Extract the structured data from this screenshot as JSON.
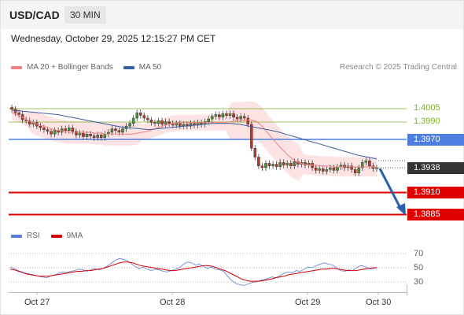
{
  "header": {
    "symbol": "USD/CAD",
    "timeframe": "30 MIN"
  },
  "datetime": "Wednesday, October 29, 2025 12:15:27 PM CET",
  "legend": {
    "ma20": "MA 20 + Bollinger Bands",
    "ma50": "MA 50",
    "rsi": "RSI",
    "rsi_ma": "9MA"
  },
  "research": "Research © 2025 Trading Central",
  "colors": {
    "up": "#4a8a3c",
    "down": "#b03a2e",
    "ma20": "#f08080",
    "ma50": "#3a5fa0",
    "band": "#fde3e3",
    "resistance": "#7bb02e",
    "pivot": "#4d7fe0",
    "support": "#e00000",
    "price_box": "#333333",
    "rsi": "#5a7fd6",
    "rsi_ma": "#d40000",
    "arrow": "#2a5fae"
  },
  "chart_data": [
    {
      "type": "candlestick",
      "title": "USD/CAD",
      "timeframe": "30 MIN",
      "x_labels": [
        "Oct 27",
        "Oct 28",
        "Oct 29",
        "Oct 30"
      ],
      "ylim": [
        1.3875,
        1.4022
      ],
      "grid": false,
      "levels": {
        "resistance": [
          "1.4005",
          "1.3990"
        ],
        "pivot": "1.3970",
        "last_price": "1.3938",
        "support": [
          "1.3910",
          "1.3885"
        ]
      },
      "close": [
        1.4004,
        1.4,
        1.3998,
        1.3992,
        1.3991,
        1.3987,
        1.3989,
        1.3985,
        1.3983,
        1.3981,
        1.3979,
        1.3976,
        1.398,
        1.3978,
        1.3982,
        1.398,
        1.3983,
        1.3979,
        1.3975,
        1.3977,
        1.3973,
        1.3976,
        1.3974,
        1.3972,
        1.3975,
        1.3972,
        1.3976,
        1.3978,
        1.3982,
        1.398,
        1.3978,
        1.3982,
        1.3985,
        1.3988,
        1.3994,
        1.4,
        1.3997,
        1.3994,
        1.3992,
        1.3989,
        1.3988,
        1.3991,
        1.3987,
        1.399,
        1.3988,
        1.3986,
        1.3988,
        1.3985,
        1.3987,
        1.3985,
        1.3988,
        1.3986,
        1.3989,
        1.3987,
        1.399,
        1.3993,
        1.3996,
        1.3998,
        1.3995,
        1.3999,
        1.3997,
        1.3999,
        1.3995,
        1.3993,
        1.3996,
        1.3994,
        1.3987,
        1.396,
        1.395,
        1.394,
        1.3938,
        1.3943,
        1.394,
        1.3942,
        1.3939,
        1.3944,
        1.3941,
        1.3943,
        1.394,
        1.3945,
        1.3942,
        1.3944,
        1.3941,
        1.3943,
        1.3938,
        1.3935,
        1.3937,
        1.3934,
        1.3936,
        1.3938,
        1.3935,
        1.3939,
        1.3941,
        1.3938,
        1.394,
        1.3936,
        1.3932,
        1.3938,
        1.3944,
        1.3946,
        1.394,
        1.3937,
        1.3938
      ],
      "ma20": [
        1.4,
        1.3998,
        1.3995,
        1.3992,
        1.3989,
        1.3987,
        1.3985,
        1.3983,
        1.3981,
        1.398,
        1.3979,
        1.3978,
        1.3978,
        1.3978,
        1.3978,
        1.3978,
        1.3977,
        1.3977,
        1.3976,
        1.3976,
        1.3976,
        1.3976,
        1.3976,
        1.3976,
        1.3977,
        1.3978,
        1.3979,
        1.3981,
        1.3983,
        1.3985,
        1.3987,
        1.3988,
        1.3989,
        1.3989,
        1.3989,
        1.3989,
        1.3989,
        1.3989,
        1.3989,
        1.3989,
        1.3989,
        1.3989,
        1.399,
        1.3991,
        1.3991,
        1.3992,
        1.3992,
        1.399,
        1.3985,
        1.3978,
        1.3971,
        1.3964,
        1.3958,
        1.3952,
        1.3947,
        1.3944,
        1.3942,
        1.3941,
        1.3941,
        1.394,
        1.394,
        1.394,
        1.3939,
        1.3939,
        1.3939,
        1.3939,
        1.3939,
        1.3939,
        1.3939,
        1.3939,
        1.3939
      ],
      "ma50": [
        1.4003,
        1.4002,
        1.4001,
        1.4,
        1.3999,
        1.3998,
        1.3996,
        1.3994,
        1.3992,
        1.399,
        1.3988,
        1.3986,
        1.3984,
        1.3983,
        1.3982,
        1.3981,
        1.3982,
        1.3983,
        1.3984,
        1.3985,
        1.3986,
        1.3987,
        1.3988,
        1.3988,
        1.3988,
        1.3987,
        1.3985,
        1.3983,
        1.3981,
        1.3979,
        1.3976,
        1.3973,
        1.397,
        1.3967,
        1.3964,
        1.3961,
        1.3958,
        1.3955,
        1.3952,
        1.395,
        1.3948
      ],
      "projection": {
        "from": 1.3938,
        "to": 1.3885
      }
    },
    {
      "type": "line",
      "title": "RSI",
      "yticks": [
        "70",
        "50",
        "30"
      ],
      "ylim": [
        20,
        80
      ],
      "series": [
        {
          "name": "RSI",
          "values": [
            51,
            49,
            46,
            44,
            42,
            41,
            40,
            38,
            37,
            36,
            38,
            40,
            42,
            44,
            43,
            45,
            46,
            48,
            47,
            45,
            47,
            49,
            47,
            49,
            52,
            56,
            60,
            63,
            62,
            60,
            56,
            52,
            49,
            51,
            48,
            46,
            48,
            47,
            45,
            44,
            46,
            48,
            50,
            55,
            58,
            57,
            54,
            55,
            52,
            49,
            51,
            48,
            47,
            45,
            38,
            32,
            28,
            26,
            25,
            27,
            29,
            30,
            32,
            33,
            35,
            37,
            36,
            39,
            42,
            44,
            43,
            46,
            45,
            48,
            51,
            50,
            53,
            55,
            57,
            55,
            54,
            50,
            46,
            45,
            47,
            46,
            50,
            53,
            52,
            49,
            48,
            51
          ]
        },
        {
          "name": "9MA",
          "values": [
            48,
            47,
            45,
            43,
            41,
            40,
            39,
            38,
            38,
            38,
            39,
            40,
            41,
            42,
            43,
            44,
            45,
            45,
            46,
            46,
            47,
            48,
            49,
            51,
            53,
            55,
            57,
            58,
            58,
            57,
            55,
            53,
            52,
            51,
            50,
            49,
            48,
            47,
            46,
            46,
            47,
            48,
            49,
            50,
            51,
            52,
            53,
            53,
            52,
            50,
            48,
            46,
            43,
            40,
            37,
            34,
            32,
            31,
            31,
            31,
            32,
            33,
            34,
            36,
            37,
            38,
            40,
            41,
            42,
            43,
            44,
            45,
            46,
            47,
            48,
            48,
            49,
            49,
            48,
            47,
            46,
            46,
            46,
            47,
            48,
            49,
            50,
            50
          ]
        }
      ]
    }
  ]
}
